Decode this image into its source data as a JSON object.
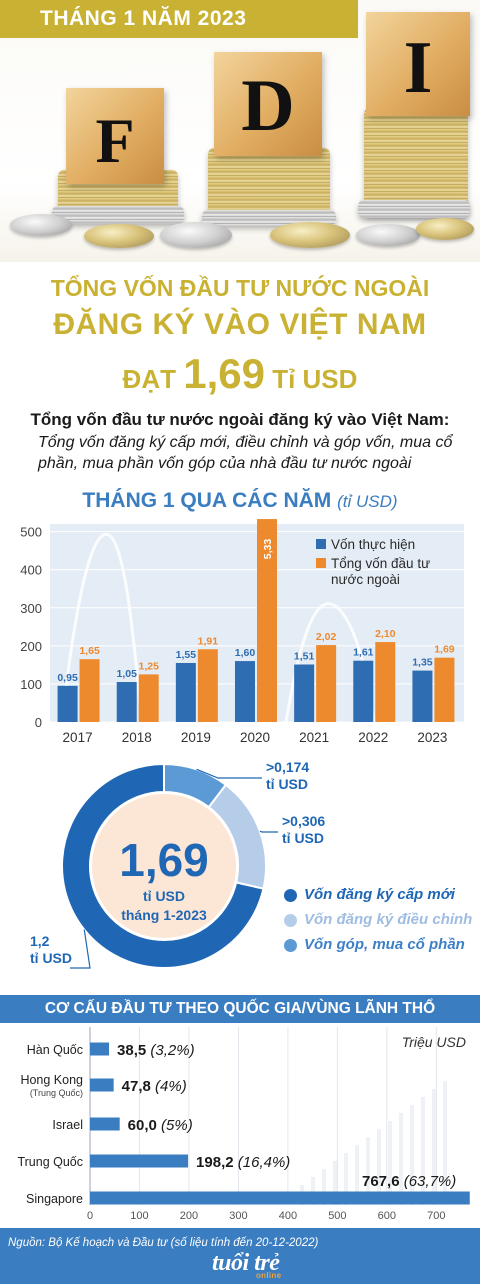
{
  "header": {
    "band_text": "THÁNG 1 NĂM 2023"
  },
  "hero": {
    "letters": [
      "F",
      "D",
      "I"
    ]
  },
  "headline": {
    "line1": "TỔNG VỐN ĐẦU TƯ NƯỚC NGOÀI",
    "line2": "ĐĂNG KÝ VÀO VIỆT NAM",
    "line3_prefix": "ĐẠT",
    "line3_value": "1,69",
    "line3_suffix": "Tỉ USD"
  },
  "definition": {
    "title": "Tổng vốn đầu tư nước ngoài đăng ký vào Việt Nam:",
    "body": "Tổng vốn đăng ký cấp mới, điều chỉnh và góp vốn, mua cổ phần, mua phần vốn góp của nhà đầu tư nước ngoài"
  },
  "colors": {
    "gold": "#c9b233",
    "blue": "#3a7dc0",
    "orange": "#ee8a2e",
    "navy_bar": "#2f6db3",
    "donut_dark": "#1f67b5",
    "donut_light": "#b6cdea",
    "donut_mid": "#5c9ad6",
    "donut_center": "#fce6d6"
  },
  "chart_data": [
    {
      "type": "bar",
      "title": "THÁNG 1 QUA CÁC NĂM",
      "unit": "(tỉ USD)",
      "categories": [
        "2017",
        "2018",
        "2019",
        "2020",
        "2021",
        "2022",
        "2023"
      ],
      "series": [
        {
          "name": "Vốn thực hiện",
          "values": [
            0.95,
            1.05,
            1.55,
            1.6,
            1.51,
            1.61,
            1.35
          ],
          "labels": [
            "0,95",
            "1,05",
            "1,55",
            "1,60",
            "1,51",
            "1,61",
            "1,35"
          ]
        },
        {
          "name": "Tổng vốn đầu tư nước ngoài",
          "values": [
            1.65,
            1.25,
            1.91,
            5.33,
            2.02,
            2.1,
            1.69
          ],
          "labels": [
            "1,65",
            "1,25",
            "1,91",
            "5,33",
            "2,02",
            "2,10",
            "1,69"
          ]
        }
      ],
      "yticks": [
        "0",
        "100",
        "200",
        "300",
        "400",
        "500"
      ],
      "ylim": [
        0,
        5.2
      ],
      "legend": "top-right",
      "grid": true
    },
    {
      "type": "pie",
      "center_value": "1,69",
      "center_label_1": "tỉ USD",
      "center_label_2": "tháng 1-2023",
      "slices": [
        {
          "name": "Vốn đăng ký cấp mới",
          "value": 1.2,
          "label_1": "1,2",
          "label_2": "tỉ USD"
        },
        {
          "name": "Vốn đăng ký điều chỉnh",
          "value": 0.306,
          "label_1": ">0,306",
          "label_2": "tỉ USD"
        },
        {
          "name": "Vốn góp, mua cổ phần",
          "value": 0.174,
          "label_1": ">0,174",
          "label_2": "tỉ USD"
        }
      ],
      "legend": "right"
    },
    {
      "type": "bar",
      "orientation": "horizontal",
      "title": "CƠ CẤU ĐẦU TƯ THEO QUỐC GIA/VÙNG LÃNH THỔ",
      "unit": "Triệu USD",
      "categories": [
        {
          "name": "Hàn Quốc",
          "sub": ""
        },
        {
          "name": "Hong Kong",
          "sub": "(Trung Quốc)"
        },
        {
          "name": "Israel",
          "sub": ""
        },
        {
          "name": "Trung Quốc",
          "sub": ""
        },
        {
          "name": "Singapore",
          "sub": ""
        }
      ],
      "values": [
        38.5,
        47.8,
        60.0,
        198.2,
        767.6
      ],
      "value_labels": [
        "38,5",
        "47,8",
        "60,0",
        "198,2",
        "767,6"
      ],
      "share_labels": [
        "(3,2%)",
        "(4%)",
        "(5%)",
        "(16,4%)",
        "(63,7%)"
      ],
      "xticks": [
        "0",
        "100",
        "200",
        "300",
        "400",
        "500",
        "600",
        "700"
      ],
      "xlim": [
        0,
        760
      ]
    }
  ],
  "footer": {
    "source": "Nguồn: Bộ Kế hoạch và Đầu tư (số liệu tính đến 20-12-2022)",
    "logo_main": "tuổi trẻ",
    "logo_sub": "online"
  }
}
